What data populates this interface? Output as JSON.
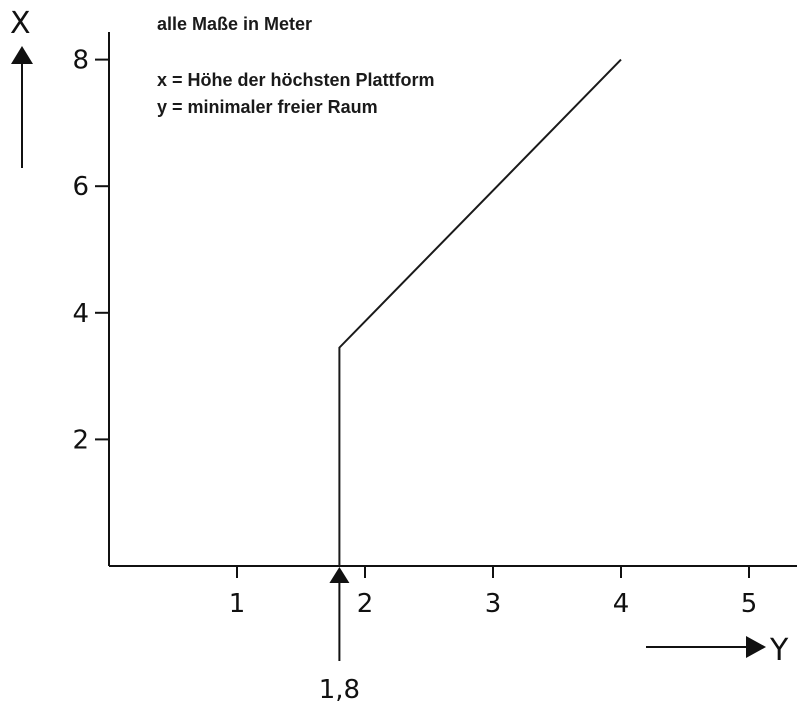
{
  "chart_data": {
    "type": "line",
    "title": "",
    "xlabel": "Y",
    "ylabel": "X",
    "notes": [
      "alle Maße in Meter",
      "x = Höhe der höchsten Plattform",
      "y = minimaler freier Raum"
    ],
    "xlim": [
      0,
      5.4
    ],
    "ylim": [
      0,
      8.4
    ],
    "x_ticks": [
      {
        "value": 1,
        "label": "1"
      },
      {
        "value": 2,
        "label": "2"
      },
      {
        "value": 3,
        "label": "3"
      },
      {
        "value": 4,
        "label": "4"
      },
      {
        "value": 5,
        "label": "5"
      }
    ],
    "y_ticks": [
      {
        "value": 2,
        "label": "2"
      },
      {
        "value": 4,
        "label": "4"
      },
      {
        "value": 6,
        "label": "6"
      },
      {
        "value": 8,
        "label": "8"
      }
    ],
    "series": [
      {
        "points": [
          {
            "x": 1.8,
            "y": 0
          },
          {
            "x": 1.8,
            "y": 3.45
          },
          {
            "x": 4.0,
            "y": 8.0
          }
        ]
      }
    ],
    "annotations": [
      {
        "x": 1.8,
        "label": "1,8"
      }
    ],
    "grid": false,
    "colors": {
      "line": "#1a1a1a",
      "axis": "#111111",
      "text": "#111111"
    }
  }
}
